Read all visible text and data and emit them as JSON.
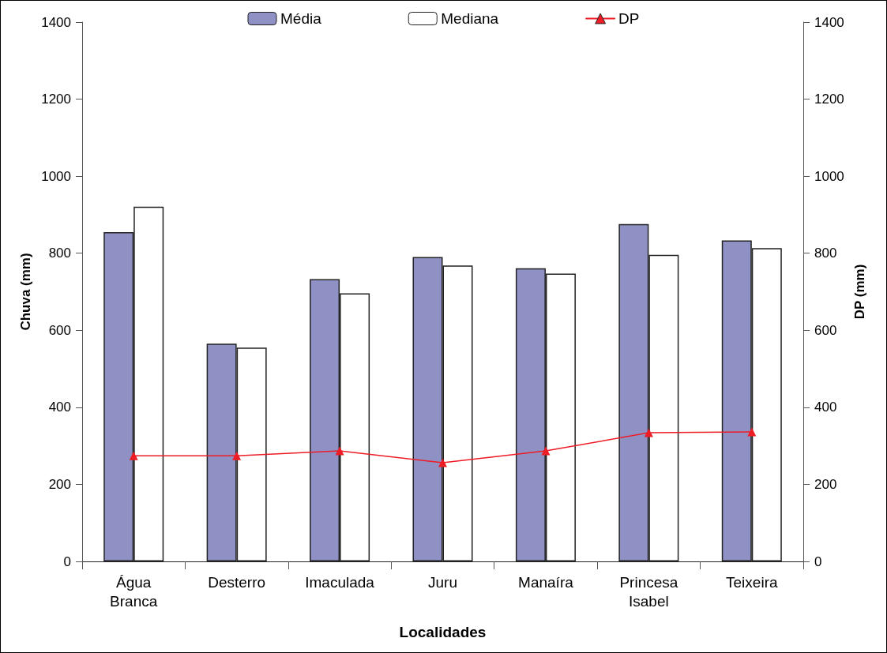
{
  "chart_data": {
    "type": "bar",
    "xlabel": "Localidades",
    "ylabel": "Chuva (mm)",
    "y2label": "DP (mm)",
    "categories": [
      "Água\nBranca",
      "Desterro",
      "Imaculada",
      "Juru",
      "Manaíra",
      "Princesa\nIsabel",
      "Teixeira"
    ],
    "series": [
      {
        "name": "Média",
        "color": "#8f91c4",
        "values": [
          855,
          565,
          733,
          790,
          761,
          876,
          833
        ]
      },
      {
        "name": "Mediana",
        "color": "#ffffff",
        "values": [
          921,
          555,
          696,
          768,
          747,
          796,
          813
        ]
      },
      {
        "name": "DP",
        "type": "line",
        "color": "#ee1c25",
        "marker": "triangle",
        "line_style": "solid",
        "values": [
          274,
          274,
          287,
          256,
          287,
          334,
          336
        ]
      }
    ],
    "ylim": [
      0,
      1400
    ],
    "yticks": [
      0,
      200,
      400,
      600,
      800,
      1000,
      1200,
      1400
    ],
    "y2lim": [
      0,
      1400
    ],
    "y2ticks": [
      0,
      200,
      400,
      600,
      800,
      1000,
      1200,
      1400
    ],
    "grid": false,
    "legend": "top"
  }
}
